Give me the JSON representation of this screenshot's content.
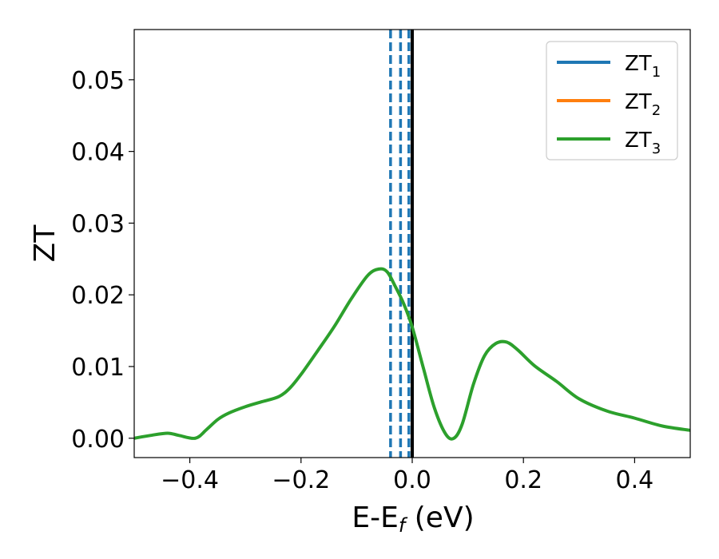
{
  "chart_data": {
    "type": "line",
    "xlabel": "E-E",
    "xlabel_sub": "f",
    "xlabel_unit": " (eV)",
    "ylabel": "ZT",
    "xlim": [
      -0.5,
      0.5
    ],
    "ylim": [
      -0.0027,
      0.057
    ],
    "xticks": [
      -0.4,
      -0.2,
      0.0,
      0.2,
      0.4
    ],
    "xtick_labels": [
      "−0.4",
      "−0.2",
      "0.0",
      "0.2",
      "0.4"
    ],
    "yticks": [
      0.0,
      0.01,
      0.02,
      0.03,
      0.04,
      0.05
    ],
    "ytick_labels": [
      "0.00",
      "0.01",
      "0.02",
      "0.03",
      "0.04",
      "0.05"
    ],
    "legend_position": "top-right",
    "series": [
      {
        "name": "ZT",
        "sub": "1",
        "color": "#1f77b4"
      },
      {
        "name": "ZT",
        "sub": "2",
        "color": "#ff7f0e"
      },
      {
        "name": "ZT",
        "sub": "3",
        "color": "#2ca02c",
        "x": [
          -0.5,
          -0.47,
          -0.44,
          -0.42,
          -0.39,
          -0.37,
          -0.35,
          -0.33,
          -0.3,
          -0.27,
          -0.24,
          -0.22,
          -0.2,
          -0.17,
          -0.14,
          -0.11,
          -0.08,
          -0.06,
          -0.045,
          -0.03,
          -0.015,
          0.0,
          0.02,
          0.04,
          0.06,
          0.075,
          0.09,
          0.11,
          0.13,
          0.15,
          0.17,
          0.19,
          0.22,
          0.26,
          0.3,
          0.35,
          0.4,
          0.45,
          0.5
        ],
        "y": [
          0.0,
          0.0004,
          0.0007,
          0.0004,
          0.0,
          0.0012,
          0.0026,
          0.0035,
          0.0044,
          0.0051,
          0.0058,
          0.007,
          0.0089,
          0.0122,
          0.0156,
          0.0194,
          0.0227,
          0.0236,
          0.0232,
          0.0211,
          0.0187,
          0.0155,
          0.0098,
          0.0042,
          0.0006,
          0.0,
          0.002,
          0.0075,
          0.0115,
          0.0132,
          0.0134,
          0.0123,
          0.0101,
          0.0079,
          0.0055,
          0.0038,
          0.0028,
          0.0017,
          0.0011
        ]
      }
    ],
    "vlines": [
      {
        "x": 0.0,
        "style": "solid",
        "color": "#000000"
      },
      {
        "x": -0.006,
        "style": "dashed",
        "color": "#1f77b4"
      },
      {
        "x": -0.021,
        "style": "dashed",
        "color": "#1f77b4"
      },
      {
        "x": -0.039,
        "style": "dashed",
        "color": "#1f77b4"
      }
    ]
  }
}
